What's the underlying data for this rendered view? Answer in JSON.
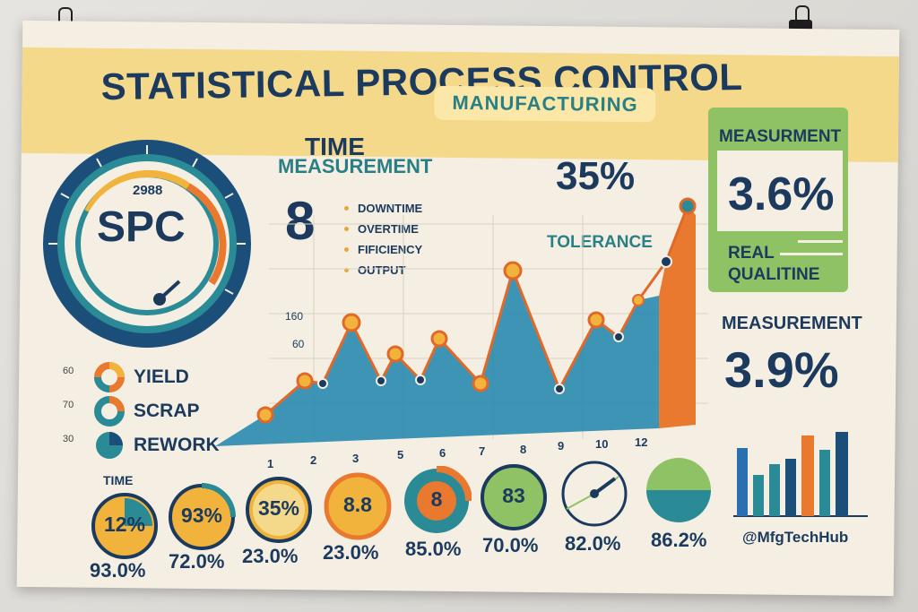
{
  "poster": {
    "title": "STATISTICAL PROCESS CONTROL",
    "subtitle": "MANUFACTURING"
  },
  "gauge": {
    "number": "2988",
    "label": "SPC"
  },
  "legend": {
    "items": [
      {
        "label": "YIELD"
      },
      {
        "label": "SCRAP"
      },
      {
        "label": "REWORK"
      }
    ],
    "axis": [
      "60",
      "70",
      "30"
    ]
  },
  "time_panel": {
    "heading": "TIME",
    "subheading": "MEASUREMENT",
    "big_value": "8",
    "bullets": [
      "DOWNTIME",
      "OVERTIME",
      "FIFICIENCY",
      "OUTPUT"
    ]
  },
  "tolerance": {
    "value": "35%",
    "label": "TOLERANCE"
  },
  "chart_data": {
    "type": "area",
    "y_ticks": [
      "160",
      "60"
    ],
    "x_ticks": [
      "1",
      "2",
      "3",
      "5",
      "6",
      "7",
      "8",
      "9",
      "10",
      "12"
    ]
  },
  "measurement_box": {
    "title": "MEASURMENT",
    "value": "3.6%",
    "line1": "REAL",
    "line2": "QUALITINE"
  },
  "measurement2": {
    "title": "MEASUREMENT",
    "value": "3.9%"
  },
  "bottom": {
    "time_label": "TIME",
    "dials": [
      {
        "center": "12%",
        "below": "93.0%"
      },
      {
        "center": "93%",
        "below": "72.0%"
      },
      {
        "center": "35%",
        "below": "23.0%"
      },
      {
        "center": "8.8",
        "below": "23.0%"
      },
      {
        "center": "8",
        "below": "85.0%"
      },
      {
        "center": "83",
        "below": "70.0%"
      },
      {
        "center": "",
        "below": "82.0%"
      },
      {
        "center": "",
        "below": "86.2%"
      }
    ],
    "handle": "@MfgTechHub"
  },
  "colors": {
    "navy": "#1b3a5e",
    "teal": "#2a7f86",
    "orange": "#e8792e",
    "yellow": "#f5d98a",
    "green": "#8fc264"
  }
}
